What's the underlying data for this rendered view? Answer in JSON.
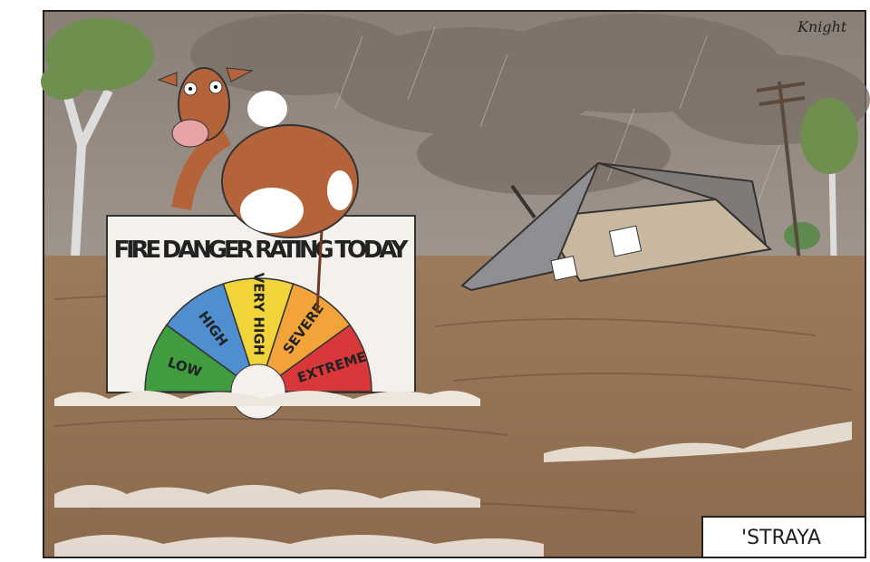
{
  "sign": {
    "title": "FIRE DANGER RATING TODAY",
    "levels": [
      "LOW",
      "HIGH",
      "VERY HIGH",
      "SEVERE",
      "EXTREME"
    ]
  },
  "signature": "Knight",
  "caption": "'STRAYA"
}
